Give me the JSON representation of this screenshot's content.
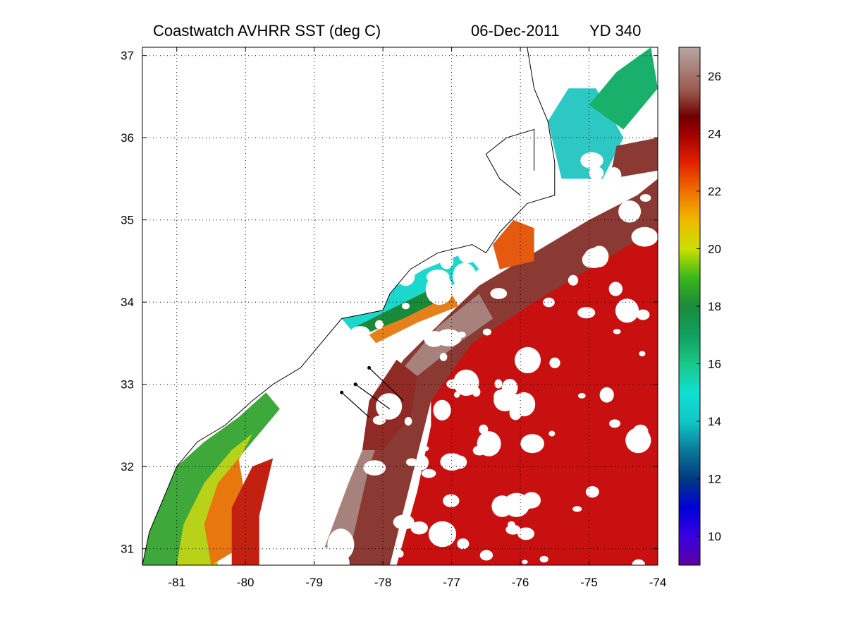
{
  "title": {
    "product": "Coastwatch   AVHRR   SST  (deg C)",
    "date": "06-Dec-2011",
    "yearday": "YD 340"
  },
  "map": {
    "lon_range": [
      -81.5,
      -74
    ],
    "lat_range": [
      30.8,
      37.1
    ],
    "x_ticks": [
      -81,
      -80,
      -79,
      -78,
      -77,
      -76,
      -75,
      -74
    ],
    "y_ticks": [
      31,
      32,
      33,
      34,
      35,
      36,
      37
    ],
    "x_tick_labels": [
      "-81",
      "-80",
      "-79",
      "-78",
      "-77",
      "-76",
      "-75",
      "-74"
    ],
    "y_tick_labels": [
      "31",
      "32",
      "33",
      "34",
      "35",
      "36",
      "37"
    ],
    "grid": "dotted"
  },
  "colorbar": {
    "range": [
      9,
      27
    ],
    "ticks": [
      10,
      12,
      14,
      16,
      18,
      20,
      22,
      24,
      26
    ],
    "tick_labels": [
      "10",
      "12",
      "14",
      "16",
      "18",
      "20",
      "22",
      "24",
      "26"
    ],
    "stops": [
      {
        "value": 9,
        "color": "#5a00a0"
      },
      {
        "value": 10,
        "color": "#3a00e0"
      },
      {
        "value": 11,
        "color": "#0000d8"
      },
      {
        "value": 12,
        "color": "#003a80"
      },
      {
        "value": 13,
        "color": "#0a7a9a"
      },
      {
        "value": 14,
        "color": "#10c8c8"
      },
      {
        "value": 15,
        "color": "#10e0d0"
      },
      {
        "value": 16,
        "color": "#18c888"
      },
      {
        "value": 17,
        "color": "#10a060"
      },
      {
        "value": 18,
        "color": "#1a8a3a"
      },
      {
        "value": 19,
        "color": "#3cb81c"
      },
      {
        "value": 20,
        "color": "#cce000"
      },
      {
        "value": 21,
        "color": "#f0b800"
      },
      {
        "value": 22,
        "color": "#f07000"
      },
      {
        "value": 23,
        "color": "#e02000"
      },
      {
        "value": 24,
        "color": "#a00000"
      },
      {
        "value": 24.6,
        "color": "#700000"
      },
      {
        "value": 25.5,
        "color": "#9a5a50"
      },
      {
        "value": 27,
        "color": "#b8a6a2"
      }
    ]
  },
  "sst_fields": [
    {
      "name": "warm-offshore",
      "color": "#c81010",
      "polygon": [
        [
          -77.3,
          33.2
        ],
        [
          -76.5,
          33.9
        ],
        [
          -75.5,
          34.2
        ],
        [
          -74.6,
          34.7
        ],
        [
          -74,
          35.0
        ],
        [
          -74,
          30.8
        ],
        [
          -77.8,
          30.8
        ],
        [
          -77.5,
          31.7
        ],
        [
          -77.3,
          32.5
        ]
      ]
    },
    {
      "name": "gulf-stream-brown",
      "color": "#8a3a32",
      "polygon": [
        [
          -78.3,
          32.1
        ],
        [
          -78.1,
          32.8
        ],
        [
          -77.7,
          33.3
        ],
        [
          -77.1,
          33.8
        ],
        [
          -76.6,
          34.2
        ],
        [
          -75.8,
          34.6
        ],
        [
          -75.0,
          35.0
        ],
        [
          -74.3,
          35.3
        ],
        [
          -74,
          35.5
        ],
        [
          -74,
          34.9
        ],
        [
          -74.8,
          34.5
        ],
        [
          -75.8,
          34.0
        ],
        [
          -76.7,
          33.5
        ],
        [
          -77.3,
          32.8
        ],
        [
          -77.6,
          31.8
        ],
        [
          -77.9,
          30.8
        ],
        [
          -78.9,
          30.8
        ],
        [
          -78.6,
          31.4
        ]
      ]
    },
    {
      "name": "gulf-stream-pale-core",
      "color": "#a7827c",
      "polygon": [
        [
          -78.2,
          32.0
        ],
        [
          -77.9,
          32.7
        ],
        [
          -77.5,
          33.1
        ],
        [
          -76.9,
          33.5
        ],
        [
          -76.4,
          33.8
        ],
        [
          -76.6,
          34.1
        ],
        [
          -77.2,
          33.7
        ],
        [
          -77.8,
          33.1
        ],
        [
          -78.1,
          32.6
        ],
        [
          -78.5,
          31.8
        ],
        [
          -78.9,
          30.9
        ],
        [
          -78.5,
          30.9
        ]
      ]
    },
    {
      "name": "warm-eddy",
      "color": "#8f2a24",
      "polygon": [
        [
          -78.3,
          32.2
        ],
        [
          -78.2,
          32.8
        ],
        [
          -77.8,
          33.3
        ],
        [
          -77.5,
          33.1
        ],
        [
          -77.6,
          32.6
        ],
        [
          -78.0,
          32.2
        ]
      ]
    },
    {
      "name": "nearshore-green-south",
      "color": "#3fa83a",
      "polygon": [
        [
          -81.5,
          30.8
        ],
        [
          -81.5,
          31.6
        ],
        [
          -81.0,
          32.0
        ],
        [
          -80.6,
          32.3
        ],
        [
          -80.1,
          32.6
        ],
        [
          -79.7,
          32.9
        ],
        [
          -79.5,
          32.7
        ],
        [
          -79.9,
          32.3
        ],
        [
          -80.3,
          31.9
        ],
        [
          -80.6,
          31.5
        ],
        [
          -80.9,
          30.8
        ]
      ]
    },
    {
      "name": "nearshore-yellow",
      "color": "#b8d21a",
      "polygon": [
        [
          -81.0,
          30.8
        ],
        [
          -80.9,
          31.3
        ],
        [
          -80.6,
          31.8
        ],
        [
          -80.2,
          32.2
        ],
        [
          -79.9,
          32.4
        ],
        [
          -80.2,
          31.9
        ],
        [
          -80.5,
          31.3
        ],
        [
          -80.4,
          30.8
        ]
      ]
    },
    {
      "name": "nearshore-orange",
      "color": "#e8780e",
      "polygon": [
        [
          -80.5,
          30.8
        ],
        [
          -80.6,
          31.3
        ],
        [
          -80.4,
          31.8
        ],
        [
          -80.1,
          32.1
        ],
        [
          -80.0,
          31.6
        ],
        [
          -80.1,
          31.0
        ]
      ]
    },
    {
      "name": "nearshore-red",
      "color": "#c22010",
      "polygon": [
        [
          -80.2,
          30.8
        ],
        [
          -80.2,
          31.5
        ],
        [
          -79.9,
          32.0
        ],
        [
          -79.6,
          32.1
        ],
        [
          -79.8,
          31.4
        ],
        [
          -79.8,
          30.8
        ]
      ]
    },
    {
      "name": "onslow-bay-cyan",
      "color": "#1cd8cc",
      "polygon": [
        [
          -78.6,
          33.8
        ],
        [
          -78.0,
          34.1
        ],
        [
          -77.4,
          34.4
        ],
        [
          -76.8,
          34.6
        ],
        [
          -76.6,
          34.4
        ],
        [
          -77.2,
          34.1
        ],
        [
          -77.9,
          33.8
        ],
        [
          -78.4,
          33.6
        ]
      ]
    },
    {
      "name": "shelf-break-orange",
      "color": "#e6801a",
      "polygon": [
        [
          -78.2,
          33.6
        ],
        [
          -77.6,
          33.9
        ],
        [
          -77.0,
          34.1
        ],
        [
          -76.9,
          33.95
        ],
        [
          -77.5,
          33.75
        ],
        [
          -78.1,
          33.5
        ]
      ]
    },
    {
      "name": "shelf-break-green",
      "color": "#1a8a3a",
      "polygon": [
        [
          -78.4,
          33.7
        ],
        [
          -77.8,
          33.95
        ],
        [
          -77.2,
          34.2
        ],
        [
          -77.1,
          34.05
        ],
        [
          -77.7,
          33.8
        ],
        [
          -78.3,
          33.6
        ]
      ]
    },
    {
      "name": "hatteras-orange",
      "color": "#e45a10",
      "polygon": [
        [
          -76.1,
          35.0
        ],
        [
          -75.8,
          34.9
        ],
        [
          -75.8,
          34.5
        ],
        [
          -76.3,
          34.4
        ],
        [
          -76.4,
          34.7
        ]
      ]
    },
    {
      "name": "north-cyan",
      "color": "#2ec8c4",
      "polygon": [
        [
          -75.6,
          36.2
        ],
        [
          -75.3,
          36.6
        ],
        [
          -74.9,
          36.6
        ],
        [
          -74.5,
          36.0
        ],
        [
          -74.8,
          35.5
        ],
        [
          -75.4,
          35.5
        ]
      ]
    },
    {
      "name": "north-green",
      "color": "#18b06a",
      "polygon": [
        [
          -75.0,
          36.4
        ],
        [
          -74.6,
          36.8
        ],
        [
          -74.1,
          37.1
        ],
        [
          -74.0,
          36.6
        ],
        [
          -74.5,
          36.1
        ]
      ]
    },
    {
      "name": "north-brown",
      "color": "#8a3a32",
      "polygon": [
        [
          -74.7,
          35.5
        ],
        [
          -74.0,
          35.6
        ],
        [
          -74.0,
          36.0
        ],
        [
          -74.6,
          35.9
        ]
      ]
    }
  ],
  "coastline": [
    [
      -81.5,
      30.8
    ],
    [
      -81.4,
      31.2
    ],
    [
      -81.2,
      31.6
    ],
    [
      -81.0,
      32.0
    ],
    [
      -80.7,
      32.3
    ],
    [
      -80.3,
      32.5
    ],
    [
      -79.9,
      32.8
    ],
    [
      -79.6,
      33.0
    ],
    [
      -79.2,
      33.2
    ],
    [
      -78.9,
      33.5
    ],
    [
      -78.6,
      33.8
    ],
    [
      -78.0,
      33.9
    ],
    [
      -77.9,
      34.1
    ],
    [
      -77.6,
      34.4
    ],
    [
      -77.2,
      34.6
    ],
    [
      -76.7,
      34.7
    ],
    [
      -76.5,
      34.6
    ],
    [
      -76.3,
      34.85
    ],
    [
      -75.9,
      35.2
    ],
    [
      -75.5,
      35.3
    ],
    [
      -75.5,
      35.7
    ],
    [
      -75.6,
      36.2
    ],
    [
      -75.8,
      36.6
    ],
    [
      -75.9,
      37.1
    ]
  ],
  "sounds_outline": [
    [
      -76.0,
      35.3
    ],
    [
      -76.3,
      35.5
    ],
    [
      -76.5,
      35.8
    ],
    [
      -76.2,
      36.0
    ],
    [
      -75.8,
      36.1
    ],
    [
      -75.8,
      35.6
    ]
  ],
  "transects": [
    {
      "from": [
        -78.2,
        33.2
      ],
      "to": [
        -77.7,
        32.8
      ]
    },
    {
      "from": [
        -78.4,
        33.0
      ],
      "to": [
        -77.9,
        32.7
      ]
    },
    {
      "from": [
        -78.6,
        32.9
      ],
      "to": [
        -78.2,
        32.6
      ]
    }
  ]
}
